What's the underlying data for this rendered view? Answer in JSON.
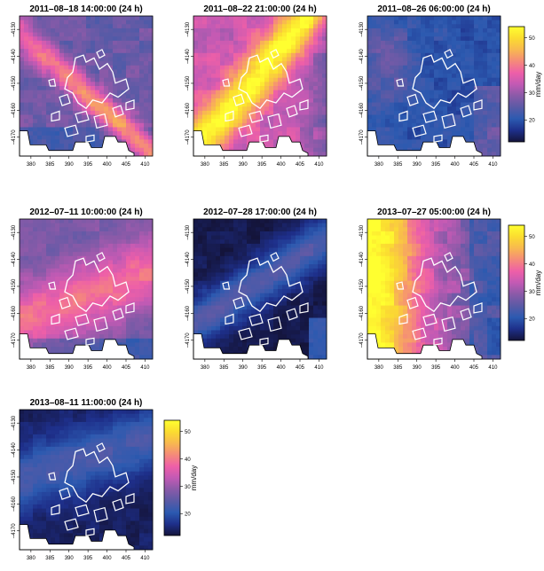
{
  "chart_data": {
    "type": "heatmap",
    "units": "mm/day",
    "colorbar": {
      "range": [
        12,
        54
      ],
      "ticks": [
        "20",
        "30",
        "40",
        "50"
      ],
      "label": "mm/day",
      "colors": [
        "#14143a",
        "#1e2f8a",
        "#2c5ab0",
        "#5a5aa6",
        "#8a5aa8",
        "#c25ab4",
        "#ee5fa8",
        "#f58a7a",
        "#f8b850",
        "#fbdc30",
        "#ffff30"
      ]
    },
    "x_ticks": [
      "380",
      "385",
      "390",
      "395",
      "400",
      "405",
      "410"
    ],
    "y_ticks": [
      "4130",
      "4140",
      "4150",
      "4160",
      "4170"
    ],
    "x_range": [
      377,
      412
    ],
    "y_range": [
      4125,
      4177
    ],
    "panels": [
      {
        "title": "2011–08–18 14:00:00 (24 h)",
        "pattern": "diag_band",
        "base": 26,
        "peak": 46,
        "center": 0.25
      },
      {
        "title": "2011–08–22 21:00:00 (24 h)",
        "pattern": "diag_band_strong",
        "base": 34,
        "peak": 54,
        "center": 0.55
      },
      {
        "title": "2011–08–26 06:00:00 (24 h)",
        "pattern": "low",
        "base": 20,
        "peak": 30,
        "center": 0.3
      },
      {
        "title": "2012–07–11 10:00:00 (24 h)",
        "pattern": "band_mid",
        "base": 27,
        "peak": 39,
        "center": 0.5
      },
      {
        "title": "2012–07–28 17:00:00 (24 h)",
        "pattern": "dark_band",
        "base": 13,
        "peak": 24,
        "center": 0.45
      },
      {
        "title": "2013–07–27 05:00:00 (24 h)",
        "pattern": "west_high",
        "base": 26,
        "peak": 54,
        "center": 0.2
      },
      {
        "title": "2013–08–11 11:00:00 (24 h)",
        "pattern": "dark_low",
        "base": 14,
        "peak": 23,
        "center": 0.6
      }
    ]
  }
}
